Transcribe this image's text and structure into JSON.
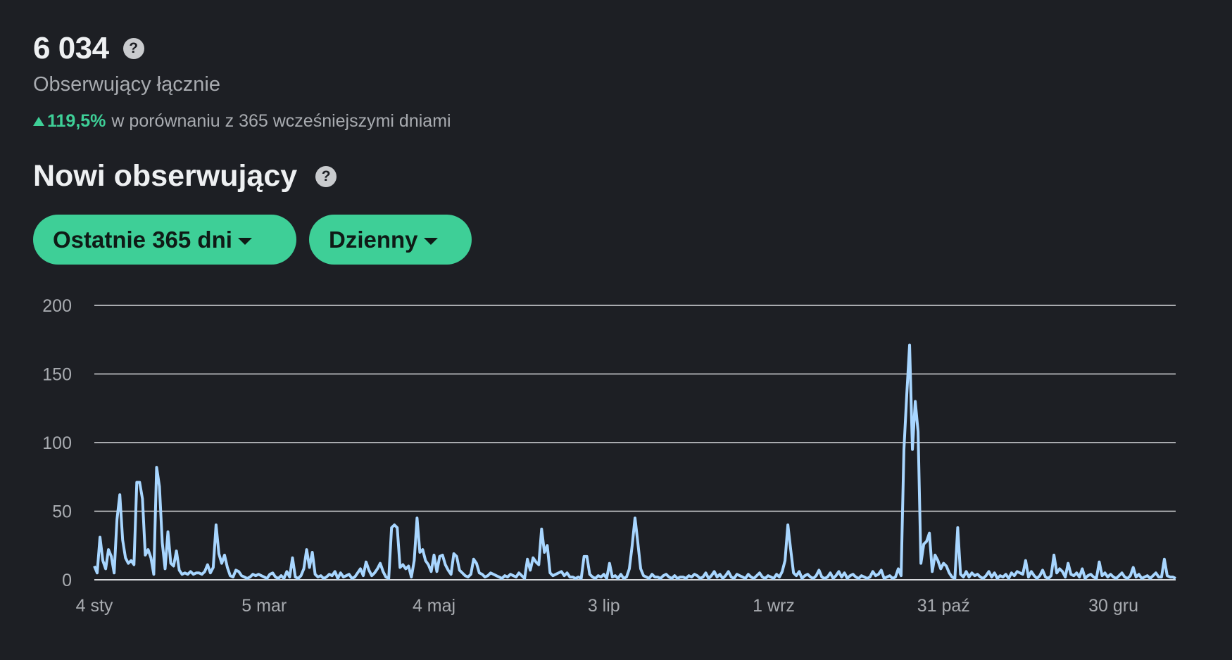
{
  "summary": {
    "total_value": "6 034",
    "total_label": "Obserwujący łącznie",
    "change_pct": "119,5%",
    "change_text": "w porównaniu z 365 wcześniejszymi dniami",
    "help_icon": "?"
  },
  "section": {
    "title": "Nowi obserwujący",
    "help_icon": "?"
  },
  "filters": {
    "range_label": "Ostatnie 365 dni",
    "interval_label": "Dzienny"
  },
  "colors": {
    "accent": "#3ecf97",
    "line": "#a8d6ff",
    "grid": "#d8dadd",
    "background": "#1d1f24"
  },
  "chart_data": {
    "type": "line",
    "title": "",
    "xlabel": "",
    "ylabel": "",
    "ylim": [
      0,
      200
    ],
    "yticks": [
      "0",
      "50",
      "100",
      "150",
      "200"
    ],
    "xticks": [
      {
        "label": "4 sty",
        "day": 0
      },
      {
        "label": "5 mar",
        "day": 60
      },
      {
        "label": "4 maj",
        "day": 120
      },
      {
        "label": "3 lip",
        "day": 180
      },
      {
        "label": "1 wrz",
        "day": 240
      },
      {
        "label": "31 paź",
        "day": 300
      },
      {
        "label": "30 gru",
        "day": 360
      }
    ],
    "grid": true,
    "series": [
      {
        "values": [
          10,
          5,
          31,
          14,
          8,
          22,
          17,
          5,
          44,
          62,
          29,
          16,
          12,
          14,
          11,
          71,
          71,
          59,
          18,
          22,
          16,
          4,
          82,
          68,
          27,
          8,
          35,
          12,
          10,
          21,
          7,
          4,
          5,
          4,
          6,
          4,
          5,
          5,
          4,
          6,
          11,
          5,
          9,
          40,
          19,
          12,
          18,
          9,
          3,
          2,
          7,
          6,
          3,
          2,
          1,
          2,
          4,
          3,
          4,
          3,
          2,
          1,
          4,
          5,
          2,
          1,
          3,
          1,
          6,
          2,
          16,
          2,
          1,
          3,
          8,
          22,
          9,
          20,
          4,
          2,
          3,
          1,
          2,
          4,
          3,
          6,
          1,
          5,
          2,
          3,
          4,
          1,
          2,
          5,
          8,
          3,
          13,
          7,
          3,
          5,
          8,
          12,
          6,
          2,
          1,
          38,
          40,
          38,
          9,
          11,
          8,
          10,
          2,
          14,
          45,
          20,
          22,
          14,
          11,
          6,
          18,
          6,
          17,
          18,
          11,
          7,
          4,
          19,
          17,
          7,
          5,
          3,
          2,
          4,
          15,
          12,
          5,
          4,
          2,
          3,
          5,
          4,
          3,
          2,
          1,
          3,
          2,
          4,
          3,
          2,
          5,
          3,
          1,
          15,
          7,
          16,
          13,
          11,
          37,
          20,
          25,
          5,
          3,
          4,
          5,
          6,
          3,
          5,
          2,
          2,
          1,
          2,
          1,
          17,
          17,
          4,
          2,
          1,
          3,
          2,
          4,
          1,
          12,
          2,
          3,
          1,
          4,
          1,
          2,
          8,
          25,
          45,
          27,
          8,
          3,
          2,
          1,
          4,
          2,
          2,
          1,
          3,
          4,
          2,
          1,
          3,
          1,
          2,
          2,
          1,
          3,
          2,
          4,
          3,
          1,
          2,
          5,
          1,
          3,
          6,
          2,
          4,
          1,
          3,
          6,
          2,
          1,
          4,
          3,
          2,
          1,
          4,
          2,
          1,
          3,
          5,
          2,
          1,
          3,
          2,
          1,
          4,
          2,
          6,
          14,
          40,
          22,
          5,
          3,
          6,
          1,
          3,
          4,
          2,
          1,
          3,
          7,
          2,
          1,
          2,
          5,
          1,
          3,
          6,
          2,
          5,
          1,
          3,
          4,
          2,
          1,
          3,
          2,
          1,
          2,
          6,
          3,
          4,
          7,
          1,
          2,
          3,
          1,
          2,
          8,
          3,
          95,
          135,
          171,
          95,
          130,
          108,
          12,
          26,
          28,
          34,
          6,
          18,
          14,
          8,
          12,
          10,
          5,
          2,
          1,
          38,
          4,
          2,
          6,
          2,
          5,
          3,
          4,
          2,
          1,
          3,
          6,
          2,
          5,
          1,
          3,
          2,
          4,
          1,
          5,
          3,
          6,
          5,
          4,
          14,
          2,
          6,
          3,
          1,
          3,
          7,
          2,
          1,
          3,
          18,
          5,
          8,
          6,
          2,
          12,
          4,
          3,
          5,
          2,
          8,
          1,
          3,
          4,
          2,
          1,
          13,
          3,
          5,
          2,
          4,
          2,
          1,
          3,
          5,
          2,
          1,
          3,
          9,
          2,
          4,
          1,
          2,
          3,
          1,
          3,
          5,
          2,
          2,
          15,
          3,
          2,
          2,
          1
        ]
      }
    ]
  }
}
